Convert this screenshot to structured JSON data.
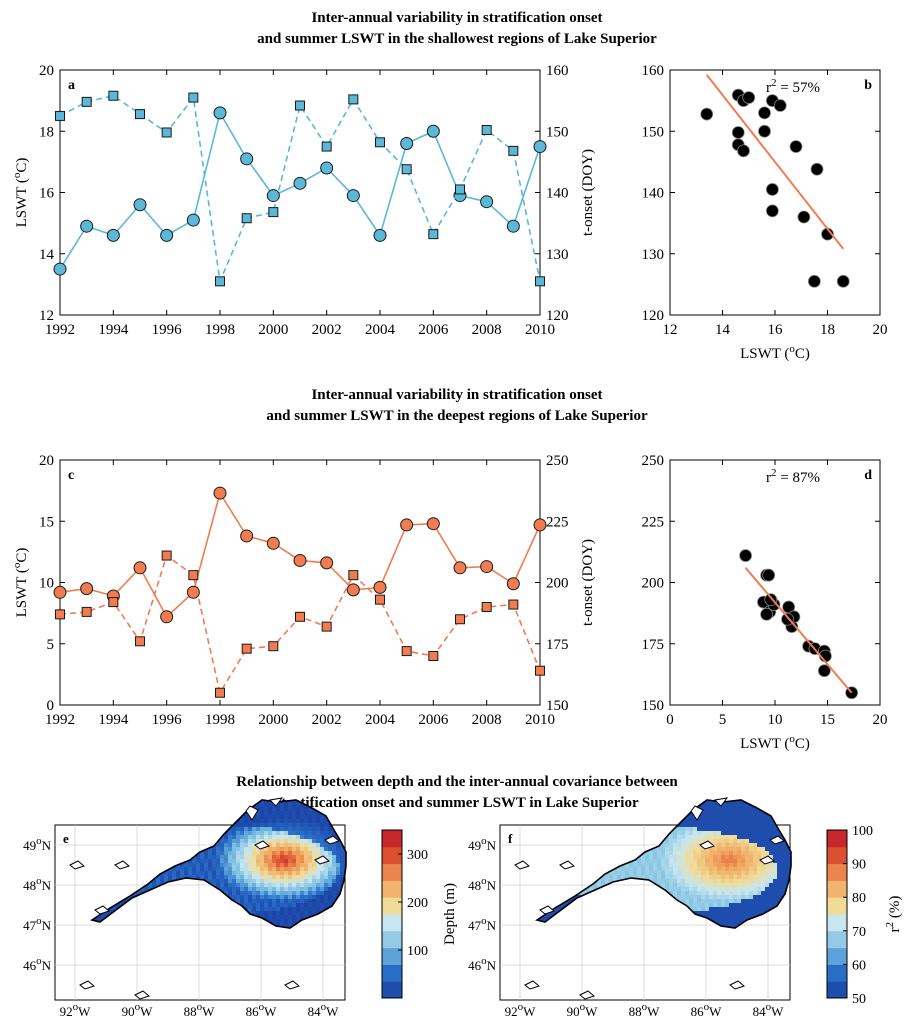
{
  "titles": {
    "top_1": "Inter-annual variability in stratification onset",
    "top_2": "and summer LSWT in the shallowest regions of Lake Superior",
    "mid_1": "Inter-annual variability in stratification onset",
    "mid_2": "and summer LSWT in the deepest regions of Lake Superior",
    "bot_1": "Relationship between depth and the inter-annual covariance between",
    "bot_2": "stratification onset and summer LSWT in Lake Superior"
  },
  "colors": {
    "blue": "#5bb8d8",
    "orange": "#f07c50",
    "fit": "#f07c50"
  },
  "chart_data": [
    {
      "id": "a",
      "type": "line",
      "panel_label": "a",
      "x": [
        1992,
        1993,
        1994,
        1995,
        1996,
        1997,
        1998,
        1999,
        2000,
        2001,
        2002,
        2003,
        2004,
        2005,
        2006,
        2007,
        2008,
        2009,
        2010
      ],
      "xlim": [
        1992,
        2010
      ],
      "xticks": [
        1992,
        1994,
        1996,
        1998,
        2000,
        2002,
        2004,
        2006,
        2008,
        2010
      ],
      "ylabel": "LSWT (°C)",
      "ylim": [
        12,
        20
      ],
      "yticks": [
        12,
        14,
        16,
        18,
        20
      ],
      "y2label": "t-onset (DOY)",
      "y2lim": [
        120,
        160
      ],
      "y2ticks": [
        120,
        130,
        140,
        150,
        160
      ],
      "series": [
        {
          "axis": "left",
          "marker": "circle",
          "line": "solid",
          "values": [
            13.5,
            14.9,
            14.6,
            15.6,
            14.6,
            15.1,
            18.6,
            17.1,
            15.9,
            16.3,
            16.8,
            15.9,
            14.6,
            17.6,
            18.0,
            15.9,
            15.7,
            14.9,
            17.5
          ]
        },
        {
          "axis": "right",
          "marker": "square",
          "line": "dashed",
          "values": [
            152.5,
            154.8,
            155.8,
            152.8,
            149.8,
            155.5,
            125.5,
            135.8,
            136.8,
            154.2,
            147.5,
            155.2,
            148.2,
            143.8,
            133.2,
            140.5,
            150.2,
            146.8,
            125.5
          ]
        }
      ]
    },
    {
      "id": "b",
      "type": "scatter",
      "panel_label": "b",
      "annotation": "r² = 57%",
      "xlabel": "LSWT (°C)",
      "xlim": [
        12,
        20
      ],
      "xticks": [
        12,
        14,
        16,
        18,
        20
      ],
      "ylim": [
        120,
        160
      ],
      "yticks": [
        120,
        130,
        140,
        150,
        160
      ],
      "points": [
        [
          13.4,
          152.8
        ],
        [
          14.6,
          155.9
        ],
        [
          14.8,
          155.0
        ],
        [
          15.0,
          155.5
        ],
        [
          14.6,
          149.8
        ],
        [
          14.6,
          147.8
        ],
        [
          14.8,
          146.8
        ],
        [
          15.6,
          153.0
        ],
        [
          15.6,
          150.0
        ],
        [
          15.9,
          155.0
        ],
        [
          16.2,
          154.2
        ],
        [
          16.8,
          147.5
        ],
        [
          15.9,
          140.5
        ],
        [
          15.9,
          137.0
        ],
        [
          17.1,
          136.0
        ],
        [
          17.6,
          143.8
        ],
        [
          18.0,
          133.2
        ],
        [
          17.5,
          125.5
        ],
        [
          18.6,
          125.5
        ]
      ],
      "fit": [
        [
          13.4,
          159.2
        ],
        [
          18.6,
          130.8
        ]
      ]
    },
    {
      "id": "c",
      "type": "line",
      "panel_label": "c",
      "x": [
        1992,
        1993,
        1994,
        1995,
        1996,
        1997,
        1998,
        1999,
        2000,
        2001,
        2002,
        2003,
        2004,
        2005,
        2006,
        2007,
        2008,
        2009,
        2010
      ],
      "xlim": [
        1992,
        2010
      ],
      "xticks": [
        1992,
        1994,
        1996,
        1998,
        2000,
        2002,
        2004,
        2006,
        2008,
        2010
      ],
      "ylabel": "LSWT (°C)",
      "ylim": [
        0,
        20
      ],
      "yticks": [
        0,
        5,
        10,
        15,
        20
      ],
      "y2label": "t-onset (DOY)",
      "y2lim": [
        150,
        250
      ],
      "y2ticks": [
        150,
        175,
        200,
        225,
        250
      ],
      "series": [
        {
          "axis": "left",
          "marker": "circle",
          "line": "solid",
          "values": [
            9.2,
            9.5,
            8.9,
            11.2,
            7.2,
            9.2,
            17.3,
            13.8,
            13.2,
            11.8,
            11.6,
            9.4,
            9.6,
            14.7,
            14.8,
            11.2,
            11.3,
            9.9,
            14.7
          ]
        },
        {
          "axis": "right",
          "marker": "square",
          "line": "dashed",
          "values": [
            187,
            188,
            192,
            176,
            211,
            203,
            155,
            173,
            174,
            186,
            182,
            203,
            193,
            172,
            170,
            185,
            190,
            191,
            164
          ]
        }
      ]
    },
    {
      "id": "d",
      "type": "scatter",
      "panel_label": "d",
      "annotation": "r² = 87%",
      "xlabel": "LSWT (°C)",
      "xlim": [
        0,
        20
      ],
      "xticks": [
        0,
        5,
        10,
        15,
        20
      ],
      "ylim": [
        150,
        250
      ],
      "yticks": [
        150,
        175,
        200,
        225,
        250
      ],
      "points": [
        [
          7.2,
          211
        ],
        [
          9.2,
          203
        ],
        [
          9.4,
          203
        ],
        [
          8.9,
          192
        ],
        [
          9.5,
          188
        ],
        [
          9.2,
          187
        ],
        [
          9.9,
          191
        ],
        [
          9.6,
          193
        ],
        [
          11.2,
          185
        ],
        [
          11.3,
          190
        ],
        [
          11.6,
          182
        ],
        [
          11.8,
          186
        ],
        [
          11.2,
          185
        ],
        [
          13.2,
          174
        ],
        [
          13.8,
          173
        ],
        [
          14.7,
          172
        ],
        [
          14.8,
          170
        ],
        [
          14.7,
          164
        ],
        [
          17.3,
          155
        ]
      ],
      "fit": [
        [
          7.2,
          206
        ],
        [
          17.3,
          155
        ]
      ]
    },
    {
      "id": "e",
      "type": "heatmap",
      "panel_label": "e",
      "xticks": [
        "92°W",
        "90°W",
        "88°W",
        "86°W",
        "84°W"
      ],
      "yticks": [
        "49°N",
        "48°N",
        "47°N",
        "46°N"
      ],
      "colorbar_label": "Depth (m)",
      "colorbar_ticks": [
        100,
        200,
        300
      ],
      "colorbar_range": [
        0,
        350
      ]
    },
    {
      "id": "f",
      "type": "heatmap",
      "panel_label": "f",
      "xticks": [
        "92°W",
        "90°W",
        "88°W",
        "86°W",
        "84°W"
      ],
      "yticks": [
        "49°N",
        "48°N",
        "47°N",
        "46°N"
      ],
      "colorbar_label": "r² (%)",
      "colorbar_ticks": [
        50,
        60,
        70,
        80,
        90,
        100
      ],
      "colorbar_range": [
        50,
        100
      ]
    }
  ]
}
